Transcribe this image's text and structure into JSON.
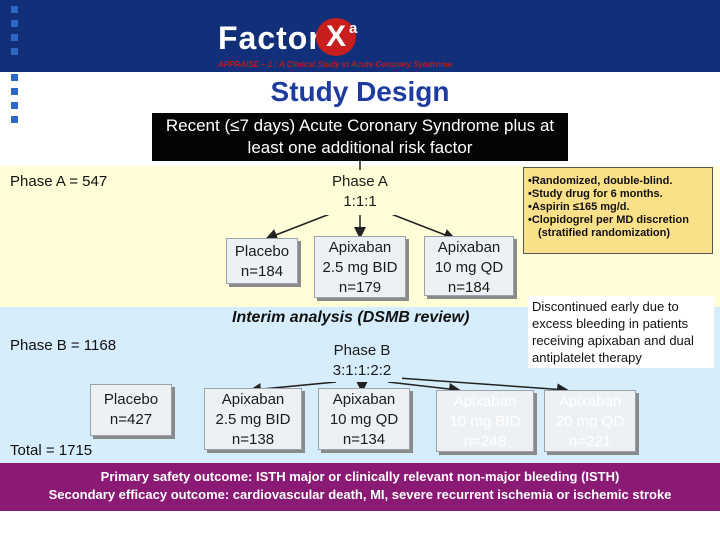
{
  "header": {
    "logo_text": "Factor",
    "logo_x": "X",
    "logo_sub": "a",
    "tagline": "APPRAISE – 1 : A Clinical Study in Acute Coronary Syndrome",
    "title": "Study Design"
  },
  "population": {
    "line1": "Recent (≤7 days) Acute Coronary Syndrome",
    "line2": "plus at least one additional risk factor"
  },
  "phase_a": {
    "label": "Phase A = 547",
    "randomization_line1": "Phase A",
    "randomization_line2": "1:1:1",
    "arms": [
      {
        "line1": "Placebo",
        "line2": "n=184"
      },
      {
        "line1": "Apixaban",
        "line2": "2.5 mg BID",
        "line3": "n=179"
      },
      {
        "line1": "Apixaban",
        "line2": "10 mg QD",
        "line3": "n=184"
      }
    ]
  },
  "notes": [
    "•Randomized, double-blind.",
    "•Study drug for 6 months.",
    "•Aspirin ≤165 mg/d.",
    "•Clopidogrel per MD discretion",
    "(stratified randomization)"
  ],
  "interim": "Interim analysis (DSMB review)",
  "discontinued": "Discontinued early due to excess bleeding in patients receiving apixaban and dual antiplatelet therapy",
  "phase_b": {
    "label": "Phase B = 1168",
    "randomization_line1": "Phase B",
    "randomization_line2": "3:1:1:2:2",
    "arms": [
      {
        "line1": "Placebo",
        "line2": "n=427"
      },
      {
        "line1": "Apixaban",
        "line2": "2.5 mg BID",
        "line3": "n=138"
      },
      {
        "line1": "Apixaban",
        "line2": "10 mg QD",
        "line3": "n=134"
      },
      {
        "line1": "Apixaban",
        "line2": "10 mg BID",
        "line3": "n=248"
      },
      {
        "line1": "Apixaban",
        "line2": "20 mg QD",
        "line3": "n=221"
      }
    ]
  },
  "total": "Total = 1715",
  "outcomes": {
    "safety": "Primary safety outcome: ISTH major or clinically relevant non-major bleeding (ISTH)",
    "efficacy": "Secondary efficacy outcome: cardiovascular death, MI, severe recurrent ischemia or ischemic stroke"
  },
  "colors": {
    "header": "#12307a",
    "title": "#1e3ca0",
    "phase_a_band": "#fffed8",
    "phase_b_band": "#d6edfb",
    "note_box": "#fbe08a",
    "outcome_bar": "#8b1a75"
  }
}
